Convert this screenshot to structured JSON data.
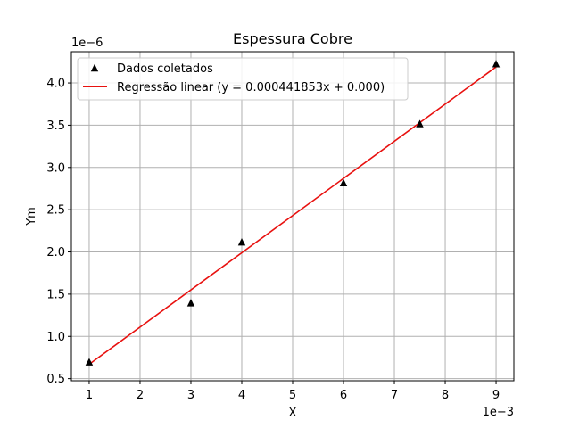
{
  "chart_data": {
    "type": "scatter",
    "title": "Espessura Cobre",
    "xlabel": "X",
    "ylabel": "Ym",
    "x_offset_label": "1e−3",
    "y_offset_label": "1e−6",
    "xlim": [
      0.00065,
      0.00935
    ],
    "ylim": [
      4.75e-07,
      4.37e-06
    ],
    "x_ticks": [
      0.001,
      0.002,
      0.003,
      0.004,
      0.005,
      0.006,
      0.007,
      0.008,
      0.009
    ],
    "x_tick_labels": [
      "1",
      "2",
      "3",
      "4",
      "5",
      "6",
      "7",
      "8",
      "9"
    ],
    "y_ticks": [
      5e-07,
      1e-06,
      1.5e-06,
      2e-06,
      2.5e-06,
      3e-06,
      3.5e-06,
      4e-06
    ],
    "y_tick_labels": [
      "0.5",
      "1.0",
      "1.5",
      "2.0",
      "2.5",
      "3.0",
      "3.5",
      "4.0"
    ],
    "grid": true,
    "legend_position": "top-left",
    "series": [
      {
        "name": "Dados coletados",
        "kind": "scatter",
        "marker": "triangle",
        "color": "#000000",
        "x": [
          0.001,
          0.003,
          0.004,
          0.006,
          0.0075,
          0.009
        ],
        "y": [
          7e-07,
          1.4e-06,
          2.12e-06,
          2.82e-06,
          3.52e-06,
          4.23e-06
        ]
      },
      {
        "name": "Regressão linear (y = 0.000441853x + 0.000)",
        "kind": "line",
        "color": "#e8110f",
        "x": [
          0.001,
          0.009
        ],
        "y": [
          6.7e-07,
          4.19e-06
        ]
      }
    ]
  }
}
